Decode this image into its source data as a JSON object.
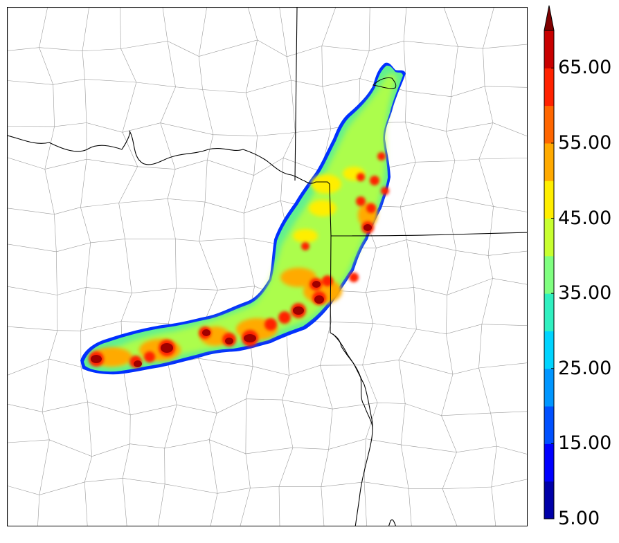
{
  "colorbar": {
    "min": 5.0,
    "max": 70.0,
    "step": 5.0,
    "extend": "max",
    "labels": [
      "65.00",
      "55.00",
      "45.00",
      "35.00",
      "25.00",
      "15.00",
      "5.00"
    ],
    "label_values": [
      65,
      55,
      45,
      35,
      25,
      15,
      5
    ],
    "colors": [
      "#0000a8",
      "#0000ff",
      "#0050ff",
      "#0096ff",
      "#00d4ff",
      "#30f0c0",
      "#80ff80",
      "#c8ff30",
      "#ffee00",
      "#ffaa00",
      "#ff6600",
      "#ff2200",
      "#c80000",
      "#800000"
    ]
  },
  "map": {
    "field": "reflectivity band",
    "legend_placement": "right",
    "features": [
      "county-borders",
      "state-borders",
      "river"
    ]
  }
}
